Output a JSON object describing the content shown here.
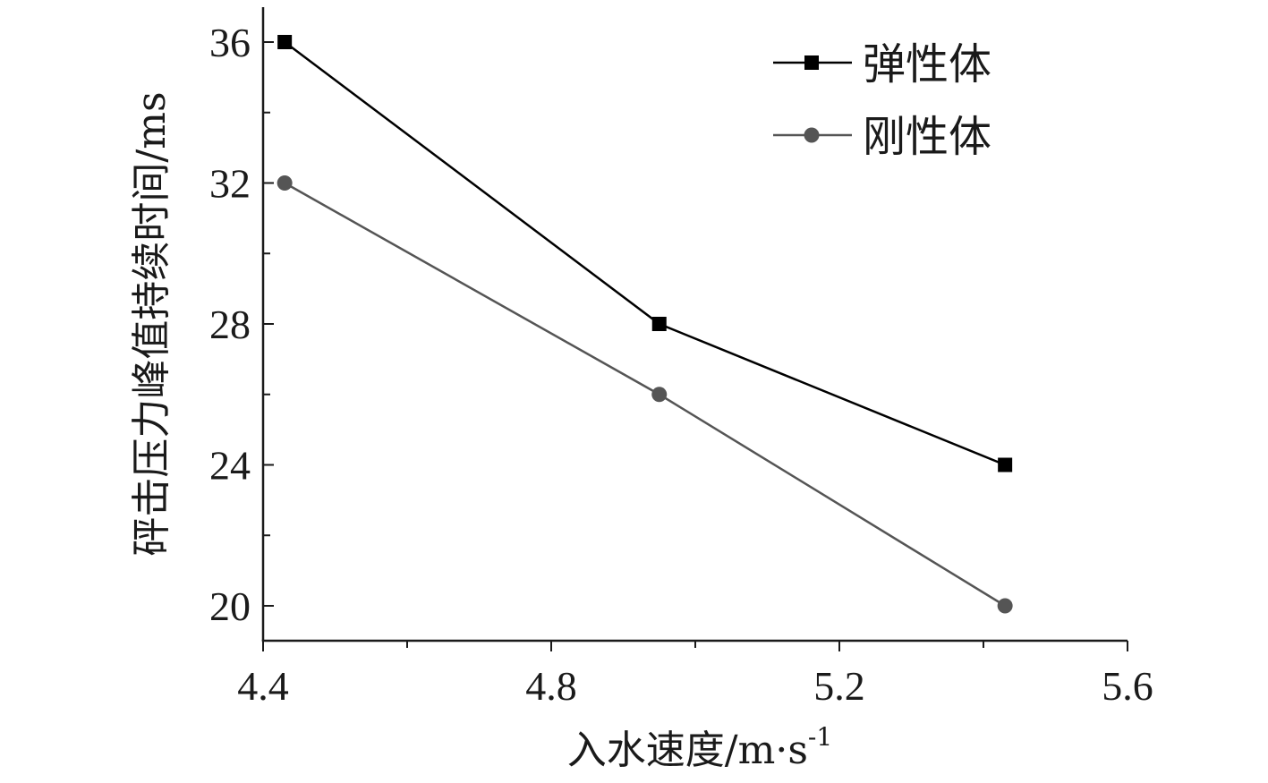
{
  "chart_data": {
    "type": "line",
    "title": "",
    "xlabel": "入水速度/m·s",
    "xlabel_sup": "-1",
    "ylabel": "砰击压力峰值持续时间/ms",
    "x": [
      4.43,
      4.95,
      5.43
    ],
    "xlim": [
      4.4,
      5.6
    ],
    "ylim": [
      18.5,
      37
    ],
    "xticks": [
      4.4,
      4.8,
      5.2,
      5.6
    ],
    "xtick_labels": [
      "4.4",
      "4.8",
      "5.2",
      "5.6"
    ],
    "yticks": [
      20,
      24,
      28,
      32,
      36
    ],
    "ytick_labels": [
      "20",
      "24",
      "28",
      "32",
      "36"
    ],
    "grid": false,
    "legend_position": "top-right",
    "series": [
      {
        "name": "弹性体",
        "values": [
          36,
          28,
          24
        ],
        "marker": "square",
        "color": "#000000"
      },
      {
        "name": "刚性体",
        "values": [
          32,
          26,
          20
        ],
        "marker": "circle",
        "color": "#555555"
      }
    ]
  }
}
